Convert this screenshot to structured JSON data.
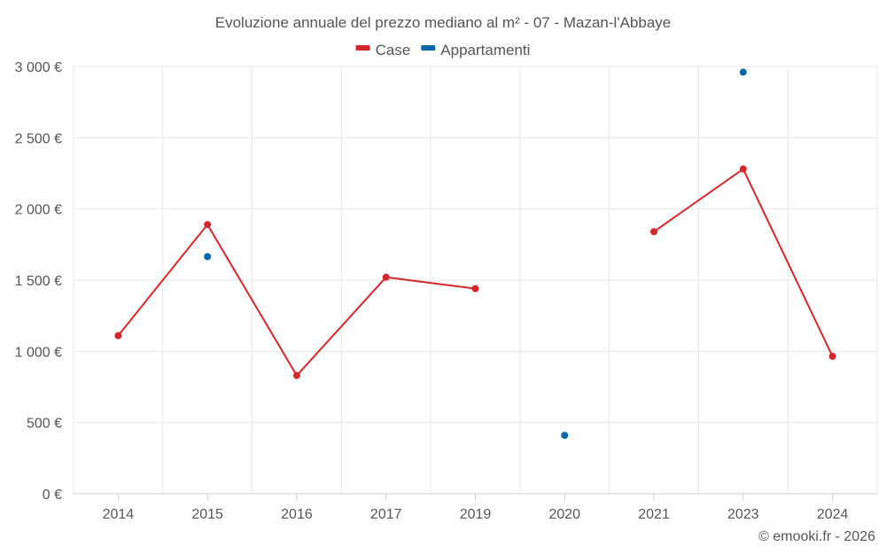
{
  "chart_data": {
    "type": "line",
    "title": "Evoluzione annuale del prezzo mediano al m² - 07 - Mazan-l'Abbaye",
    "categories": [
      "2014",
      "2015",
      "2016",
      "2017",
      "2019",
      "2020",
      "2021",
      "2023",
      "2024"
    ],
    "y_ticks": [
      "0 €",
      "500 €",
      "1 000 €",
      "1 500 €",
      "2 000 €",
      "2 500 €",
      "3 000 €"
    ],
    "ylim": [
      0,
      3000
    ],
    "xlabel": "",
    "ylabel": "",
    "grid": true,
    "legend_position": "top",
    "series": [
      {
        "name": "Case",
        "color": "#d62728",
        "values": [
          1110,
          1890,
          830,
          1520,
          1440,
          null,
          1840,
          2280,
          965
        ],
        "connected_segments": [
          [
            0,
            4
          ],
          [
            6,
            8
          ]
        ]
      },
      {
        "name": "Appartamenti",
        "color": "#0868ac",
        "values": [
          null,
          1665,
          null,
          null,
          null,
          410,
          null,
          2960,
          null
        ],
        "connected_segments": []
      }
    ],
    "credit": "© emooki.fr - 2026"
  }
}
